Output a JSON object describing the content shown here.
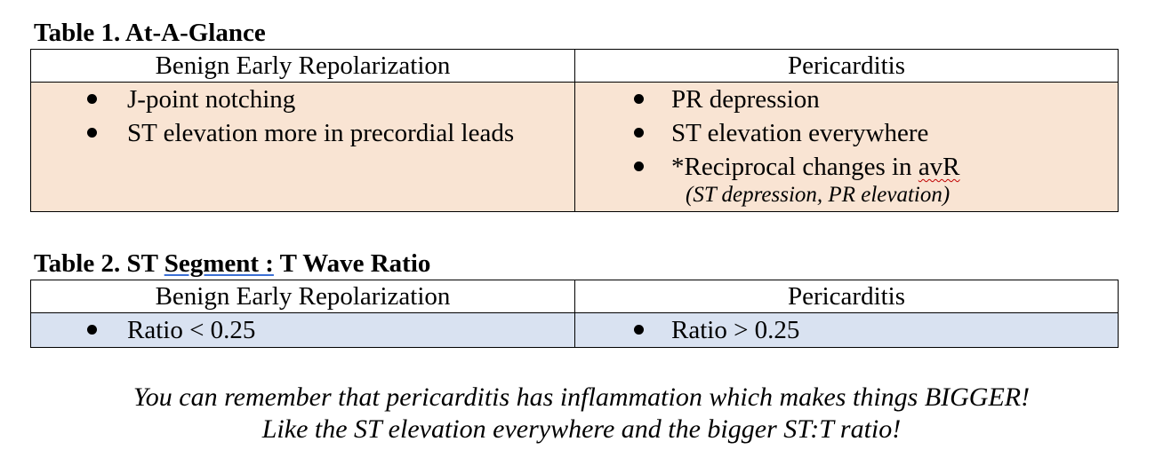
{
  "table1": {
    "caption": "Table 1. At-A-Glance",
    "headers": [
      "Benign Early Repolarization",
      "Pericarditis"
    ],
    "left_items": [
      "J-point notching",
      "ST elevation more in precordial leads"
    ],
    "right_items": [
      "PR depression",
      "ST elevation everywhere"
    ],
    "right_item3_prefix": "*Reciprocal changes in ",
    "right_item3_term": "avR",
    "right_note": "(ST depression, PR elevation)",
    "body_color": "#f9e4d3"
  },
  "table2": {
    "caption_prefix": "Table 2. ST ",
    "caption_link": "Segment :",
    "caption_suffix": " T Wave Ratio",
    "headers": [
      "Benign Early Repolarization",
      "Pericarditis"
    ],
    "left_items": [
      "Ratio < 0.25"
    ],
    "right_items": [
      "Ratio > 0.25"
    ],
    "body_color": "#d9e2f1"
  },
  "footer": {
    "line1": "You can remember that pericarditis has inflammation which makes things BIGGER!",
    "line2": "Like the ST elevation everywhere and the bigger ST:T ratio!"
  }
}
